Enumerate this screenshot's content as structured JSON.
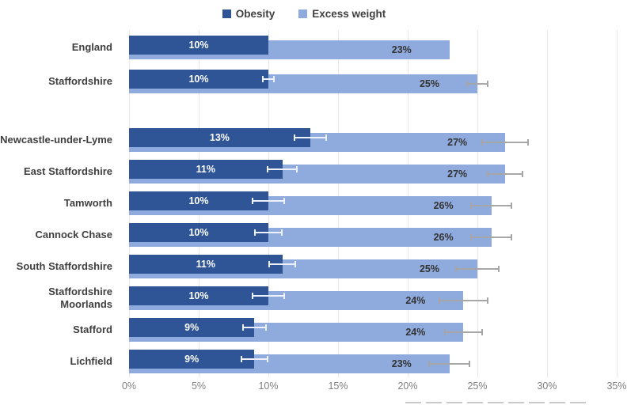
{
  "chart_data": {
    "type": "bar",
    "orientation": "horizontal",
    "title": "",
    "categories": [
      "England",
      "Staffordshire",
      "Newcastle-under-Lyme",
      "East Staffordshire",
      "Tamworth",
      "Cannock Chase",
      "South Staffordshire",
      "Staffordshire\nMoorlands",
      "Stafford",
      "Lichfield"
    ],
    "group_break_after_index": 1,
    "series": [
      {
        "name": "Obesity",
        "color": "#2F5597",
        "values": [
          10,
          10,
          13,
          11,
          10,
          10,
          11,
          10,
          9,
          9
        ],
        "labels": [
          "10%",
          "10%",
          "13%",
          "11%",
          "10%",
          "10%",
          "11%",
          "10%",
          "9%",
          "9%"
        ],
        "errors": [
          null,
          0.45,
          1.2,
          1.1,
          1.2,
          1.0,
          1.0,
          1.2,
          0.9,
          1.0
        ]
      },
      {
        "name": "Excess weight",
        "color": "#8FAADC",
        "values": [
          23,
          25,
          27,
          27,
          26,
          26,
          25,
          24,
          24,
          23
        ],
        "labels": [
          "23%",
          "25%",
          "27%",
          "27%",
          "26%",
          "26%",
          "25%",
          "24%",
          "24%",
          "23%"
        ],
        "errors": [
          null,
          0.8,
          1.7,
          1.3,
          1.5,
          1.5,
          1.6,
          1.8,
          1.4,
          1.5
        ]
      }
    ],
    "xlabel": "",
    "ylabel": "",
    "x_axis": {
      "ticks": [
        "0%",
        "5%",
        "10%",
        "15%",
        "20%",
        "25%",
        "30%",
        "35%"
      ],
      "range": [
        0,
        35
      ],
      "gridlines": true
    },
    "legend_position": "top",
    "error_bars": true
  },
  "colors": {
    "obesity": "#2F5597",
    "excess_weight": "#8FAADC",
    "gridline": "#E7E7E7",
    "axis_text": "#7F7F7F",
    "category_text": "#3F3F3F",
    "dark_bar_label": "#FFFFFF",
    "light_bar_label": "#333333",
    "obesity_error": "#EDF2FA",
    "excess_error": "#A6A6A6",
    "background": "#FFFFFF"
  }
}
